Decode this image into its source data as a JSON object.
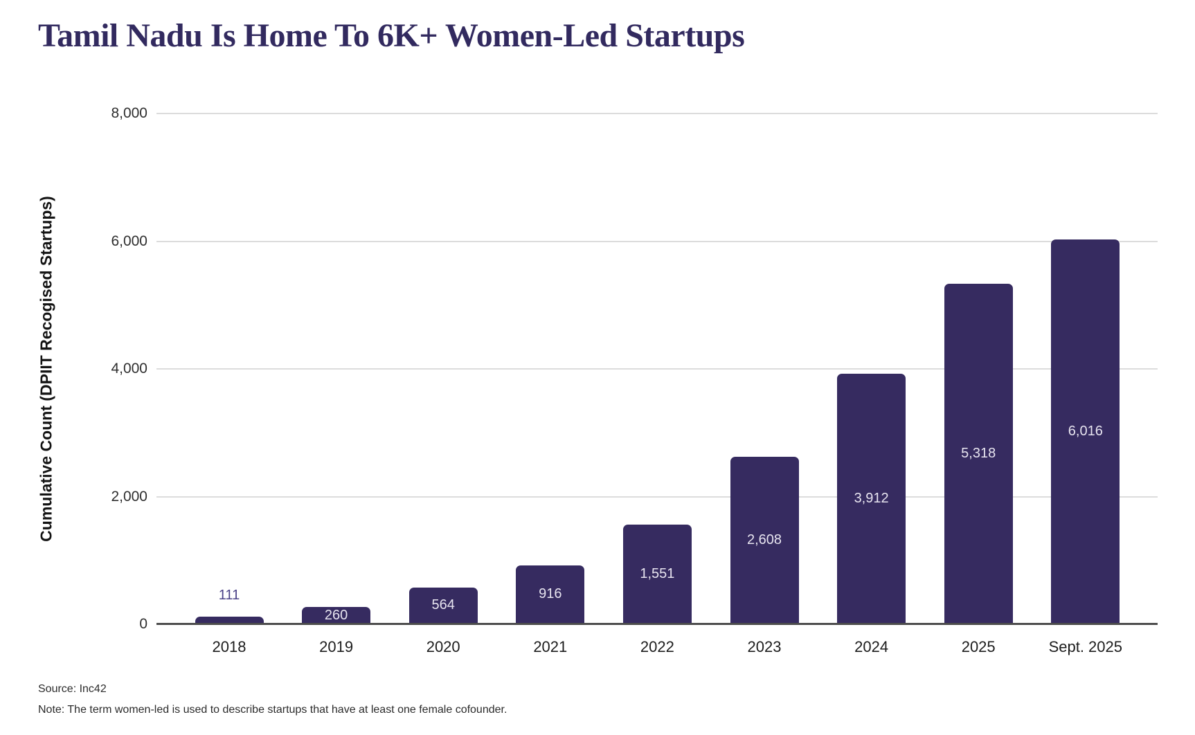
{
  "chart_data": {
    "type": "bar",
    "title": "Tamil Nadu Is Home To 6K+ Women-Led Startups",
    "categories": [
      "2018",
      "2019",
      "2020",
      "2021",
      "2022",
      "2023",
      "2024",
      "2025",
      "Sept. 2025"
    ],
    "values": [
      111,
      260,
      564,
      916,
      1551,
      2608,
      3912,
      5318,
      6016
    ],
    "value_labels": [
      "111",
      "260",
      "564",
      "916",
      "1,551",
      "2,608",
      "3,912",
      "5,318",
      "6,016"
    ],
    "label_positions": [
      "above",
      "inside",
      "inside",
      "inside",
      "inside",
      "inside",
      "inside",
      "inside",
      "inside"
    ],
    "xlabel": "",
    "ylabel": "Cumulative Count (DPIIT Recogised Startups)",
    "ylim": [
      0,
      8000
    ],
    "yticks": [
      0,
      2000,
      4000,
      6000,
      8000
    ],
    "ytick_labels": [
      "0",
      "2,000",
      "4,000",
      "6,000",
      "8,000"
    ],
    "grid": "horizontal",
    "legend": "none",
    "bar_color": "#362b60",
    "inside_label_color": "#e8e5f0",
    "above_label_color": "#4a4187"
  },
  "footer": {
    "source": "Source: Inc42",
    "note": "Note: The term women-led is used to describe startups that have at least one female cofounder."
  }
}
